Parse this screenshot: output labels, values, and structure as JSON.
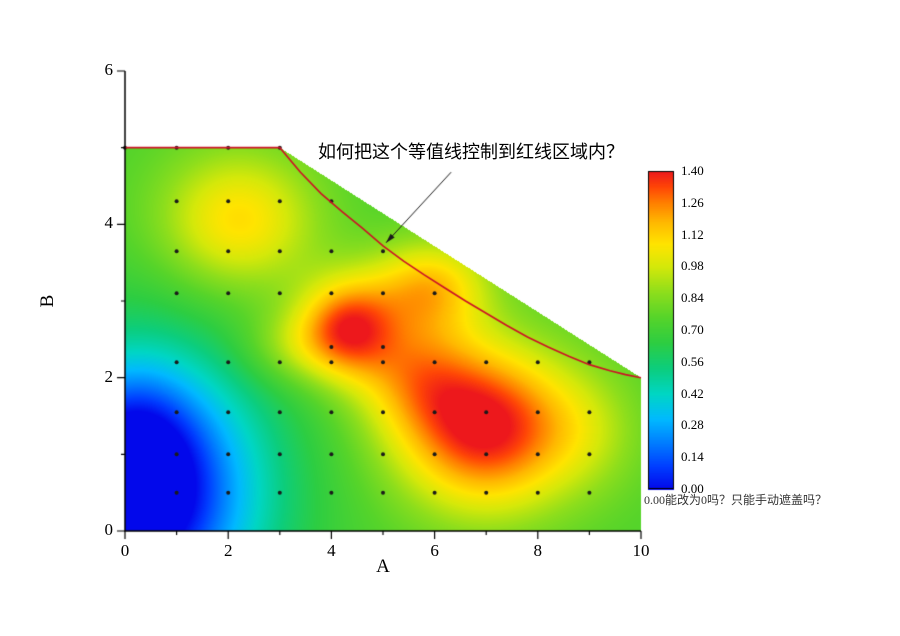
{
  "figure": {
    "background": "#ffffff"
  },
  "annotation": {
    "text": "如何把这个等值线控制到红线区域内？"
  },
  "colorbar_note": "0.00能改为0吗？只能手动遮盖吗？",
  "chart_data": {
    "type": "heatmap",
    "subtype": "filled-contour-with-boundary",
    "title": "",
    "xlabel": "A",
    "ylabel": "B",
    "xlim": [
      0,
      10
    ],
    "ylim": [
      0,
      6
    ],
    "grid": false,
    "legend_position": "none",
    "x_major_ticks": [
      0,
      2,
      4,
      6,
      8,
      10
    ],
    "x_minor_ticks": [
      1,
      3,
      5,
      7,
      9
    ],
    "y_major_ticks": [
      0,
      2,
      4,
      6
    ],
    "y_minor_ticks": [
      1,
      3,
      5
    ],
    "colorbar": {
      "vmin": 0.0,
      "vmax": 1.4,
      "tick_values": [
        0.0,
        0.14,
        0.28,
        0.42,
        0.56,
        0.7,
        0.84,
        0.98,
        1.12,
        1.26,
        1.4
      ],
      "tick_labels": [
        "0.00",
        "0.14",
        "0.28",
        "0.42",
        "0.56",
        "0.70",
        "0.84",
        "0.98",
        "1.12",
        "1.26",
        "1.40"
      ]
    },
    "colormap_stops": [
      [
        0.0,
        [
          2,
          8,
          235
        ]
      ],
      [
        0.07,
        [
          0,
          60,
          255
        ]
      ],
      [
        0.14,
        [
          0,
          120,
          255
        ]
      ],
      [
        0.22,
        [
          0,
          185,
          255
        ]
      ],
      [
        0.3,
        [
          0,
          214,
          196
        ]
      ],
      [
        0.38,
        [
          12,
          205,
          125
        ]
      ],
      [
        0.46,
        [
          45,
          205,
          66
        ]
      ],
      [
        0.54,
        [
          86,
          212,
          42
        ]
      ],
      [
        0.62,
        [
          142,
          222,
          28
        ]
      ],
      [
        0.7,
        [
          212,
          232,
          10
        ]
      ],
      [
        0.77,
        [
          255,
          228,
          0
        ]
      ],
      [
        0.84,
        [
          255,
          184,
          0
        ]
      ],
      [
        0.9,
        [
          255,
          128,
          0
        ]
      ],
      [
        0.95,
        [
          255,
          70,
          6
        ]
      ],
      [
        1.0,
        [
          237,
          24,
          28
        ]
      ]
    ],
    "region_polygon": [
      [
        0,
        0
      ],
      [
        10,
        0
      ],
      [
        10,
        2
      ],
      [
        3,
        5
      ],
      [
        0,
        5
      ]
    ],
    "red_boundary_line": {
      "color": "#cc1126",
      "points": [
        [
          0,
          5
        ],
        [
          3,
          5
        ],
        [
          3.4,
          4.68
        ],
        [
          3.8,
          4.4
        ],
        [
          4.2,
          4.17
        ],
        [
          4.6,
          3.95
        ],
        [
          5.0,
          3.72
        ],
        [
          5.4,
          3.52
        ],
        [
          5.8,
          3.34
        ],
        [
          6.2,
          3.17
        ],
        [
          6.6,
          3.0
        ],
        [
          7.0,
          2.84
        ],
        [
          7.4,
          2.68
        ],
        [
          7.8,
          2.53
        ],
        [
          8.2,
          2.4
        ],
        [
          8.6,
          2.28
        ],
        [
          9.0,
          2.17
        ],
        [
          9.4,
          2.09
        ],
        [
          9.7,
          2.04
        ],
        [
          10,
          2
        ]
      ]
    },
    "grid_points": {
      "color": "#1a1a1a",
      "radius_px": 2,
      "rows": [
        {
          "y": 5.0,
          "xs": [
            0,
            1,
            2,
            3
          ]
        },
        {
          "y": 4.3,
          "xs": [
            1,
            2,
            3,
            4
          ]
        },
        {
          "y": 3.65,
          "xs": [
            1,
            2,
            3,
            4,
            5
          ]
        },
        {
          "y": 3.1,
          "xs": [
            1,
            2,
            3,
            4,
            5,
            6
          ]
        },
        {
          "y": 2.4,
          "xs": [
            4,
            5
          ]
        },
        {
          "y": 2.2,
          "xs": [
            1,
            2,
            3,
            4,
            5,
            6,
            7,
            8,
            9
          ]
        },
        {
          "y": 1.55,
          "xs": [
            1,
            2,
            3,
            4,
            5,
            6,
            7,
            8,
            9
          ]
        },
        {
          "y": 1.0,
          "xs": [
            1,
            2,
            3,
            4,
            5,
            6,
            7,
            8,
            9
          ]
        },
        {
          "y": 0.5,
          "xs": [
            1,
            2,
            3,
            4,
            5,
            6,
            7,
            8,
            9
          ]
        }
      ]
    },
    "field": {
      "base": 0.74,
      "gaussian_bumps": [
        {
          "x": 0.3,
          "y": 0.5,
          "amp": -0.8,
          "sx": 2.4,
          "sy": 1.8
        },
        {
          "x": 0.2,
          "y": 0.8,
          "amp": -0.28,
          "sx": 1.1,
          "sy": 1.1
        },
        {
          "x": 7.0,
          "y": 1.35,
          "amp": 0.68,
          "sx": 1.7,
          "sy": 1.05
        },
        {
          "x": 4.3,
          "y": 2.65,
          "amp": 0.56,
          "sx": 0.95,
          "sy": 0.65
        },
        {
          "x": 5.6,
          "y": 2.1,
          "amp": 0.3,
          "sx": 1.2,
          "sy": 0.8
        },
        {
          "x": 5.9,
          "y": 3.2,
          "amp": 0.38,
          "sx": 1.15,
          "sy": 0.6
        },
        {
          "x": 2.2,
          "y": 4.05,
          "amp": 0.36,
          "sx": 1.5,
          "sy": 0.9
        },
        {
          "x": 3.2,
          "y": 2.4,
          "amp": 0.16,
          "sx": 1.0,
          "sy": 0.5
        },
        {
          "x": 9.0,
          "y": 1.3,
          "amp": 0.12,
          "sx": 1.1,
          "sy": 0.8
        }
      ]
    },
    "annotation_arrow": {
      "color": "#1a1a1a",
      "from": [
        6.32,
        4.68
      ],
      "to": [
        5.06,
        3.76
      ]
    }
  }
}
